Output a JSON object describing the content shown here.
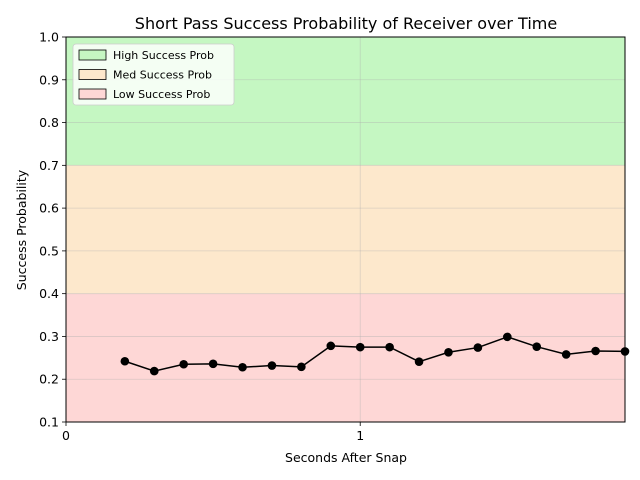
{
  "chart_data": {
    "type": "line",
    "title": "Short Pass Success Probability of Receiver over Time",
    "xlabel": "Seconds After Snap",
    "ylabel": "Success Probability",
    "xlim": [
      0,
      1.9
    ],
    "ylim": [
      0.1,
      1.0
    ],
    "xticks": [
      0,
      1
    ],
    "yticks": [
      0.1,
      0.2,
      0.3,
      0.4,
      0.5,
      0.6,
      0.7,
      0.8,
      0.9,
      1.0
    ],
    "grid": true,
    "legend_position": "top-left",
    "bands": [
      {
        "label": "High Success Prob",
        "from": 0.7,
        "to": 1.0,
        "color": "#c5f7c2"
      },
      {
        "label": "Med Success Prob",
        "from": 0.4,
        "to": 0.7,
        "color": "#fde8cc"
      },
      {
        "label": "Low Success Prob",
        "from": 0.1,
        "to": 0.4,
        "color": "#fed7d6"
      }
    ],
    "series": [
      {
        "color": "#000000",
        "x": [
          0.2,
          0.3,
          0.4,
          0.5,
          0.6,
          0.7,
          0.8,
          0.9,
          1.0,
          1.1,
          1.2,
          1.3,
          1.4,
          1.5,
          1.6,
          1.7,
          1.8,
          1.9
        ],
        "y": [
          0.242,
          0.219,
          0.235,
          0.236,
          0.228,
          0.232,
          0.229,
          0.278,
          0.275,
          0.275,
          0.241,
          0.263,
          0.274,
          0.299,
          0.276,
          0.258,
          0.266,
          0.265
        ]
      }
    ]
  }
}
